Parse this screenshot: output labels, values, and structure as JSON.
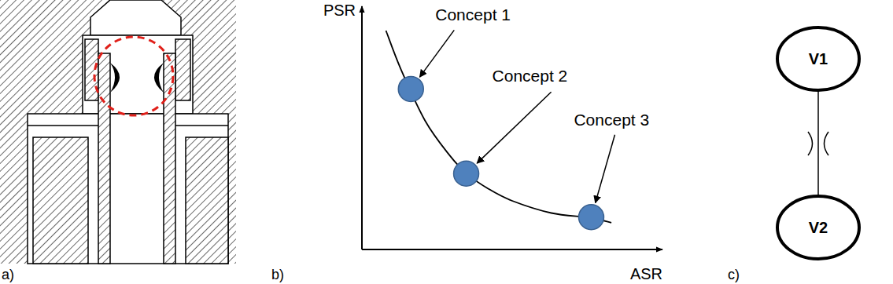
{
  "panels": {
    "a": {
      "label": "a)"
    },
    "c": {
      "label": "c)",
      "nodes": [
        {
          "label": "V1"
        },
        {
          "label": "V2"
        }
      ]
    }
  },
  "chart_data": {
    "type": "line",
    "panel_label": "b)",
    "x_label": "ASR",
    "y_label": "PSR",
    "xlim": [
      0,
      10
    ],
    "ylim": [
      0,
      10
    ],
    "tick_labels": false,
    "grid": false,
    "series": [
      {
        "type": "line",
        "color": "#000000",
        "line_style": "solid",
        "x": [
          0.8,
          1.3,
          2.1,
          2.9,
          3.5,
          4.2,
          5.0,
          6.3,
          7.6,
          8.3
        ],
        "values": [
          9.0,
          7.4,
          5.3,
          3.9,
          3.1,
          2.5,
          2.0,
          1.5,
          1.3,
          1.1
        ]
      },
      {
        "type": "scatter",
        "color": "#4f81bd",
        "marker": "circle",
        "x": [
          1.63,
          3.47,
          7.63
        ],
        "values": [
          6.6,
          3.12,
          1.33
        ]
      }
    ],
    "annotations": [
      "Concept 1",
      "Concept 2",
      "Concept 3"
    ]
  }
}
